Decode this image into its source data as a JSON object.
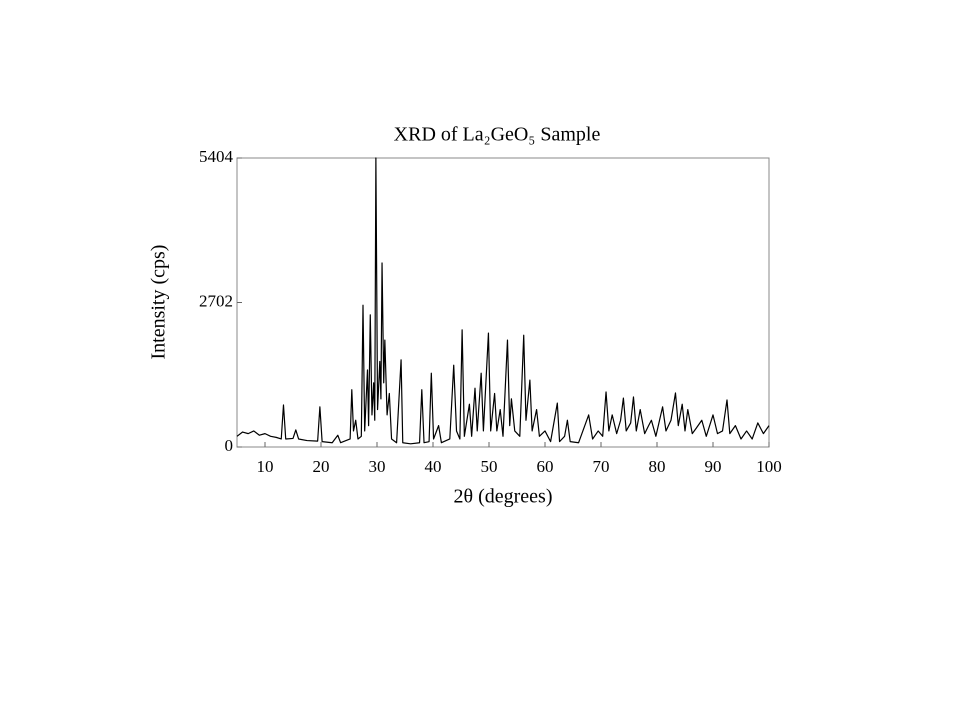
{
  "chart_data": {
    "type": "line",
    "title": "XRD of La₂GeO₅ Sample",
    "x_label": "2θ (degrees)",
    "y_label": "Intensity (cps)",
    "color": "#000000",
    "xlim": [
      5,
      100
    ],
    "ylim": [
      0,
      5404
    ],
    "xticks": [
      10,
      20,
      30,
      40,
      50,
      60,
      70,
      80,
      90,
      100
    ],
    "yticks": [
      0,
      2702,
      5404
    ],
    "x": [
      5,
      6,
      7,
      8,
      9,
      10,
      11,
      12,
      12.9,
      13.3,
      13.7,
      15,
      15.5,
      16,
      17.5,
      19.4,
      19.8,
      20.2,
      22,
      23,
      23.5,
      25.2,
      25.5,
      25.8,
      26.2,
      26.6,
      27.2,
      27.5,
      27.8,
      28.3,
      28.5,
      28.8,
      29.1,
      29.4,
      29.6,
      29.8,
      30.1,
      30.5,
      30.7,
      30.9,
      31.2,
      31.4,
      31.8,
      32.2,
      32.6,
      33.5,
      34.3,
      34.6,
      36,
      37.6,
      38,
      38.4,
      39.3,
      39.7,
      40.1,
      41,
      41.5,
      43,
      43.7,
      44.2,
      44.8,
      45.2,
      45.6,
      46.5,
      46.9,
      47.5,
      47.9,
      48.6,
      49,
      49.9,
      50.3,
      51,
      51.4,
      52,
      52.5,
      53.3,
      53.7,
      54,
      54.6,
      55.5,
      56.2,
      56.6,
      57.3,
      57.7,
      58.5,
      59,
      60,
      61,
      62.2,
      62.6,
      63.5,
      64,
      64.5,
      66,
      67.8,
      68.5,
      69.5,
      70.3,
      70.9,
      71.4,
      72,
      72.8,
      73.5,
      74,
      74.5,
      75.3,
      75.8,
      76.3,
      77,
      77.8,
      78.5,
      79,
      79.8,
      81,
      81.6,
      82.5,
      83.3,
      83.8,
      84.5,
      85,
      85.5,
      86.3,
      87,
      88,
      88.8,
      90,
      90.8,
      91.7,
      92.5,
      93,
      94,
      95,
      96,
      97,
      98,
      99,
      100
    ],
    "values": [
      200,
      280,
      250,
      300,
      220,
      250,
      200,
      180,
      150,
      785,
      150,
      160,
      320,
      150,
      120,
      110,
      750,
      100,
      80,
      220,
      80,
      150,
      1070,
      300,
      500,
      150,
      200,
      2650,
      300,
      1440,
      400,
      2470,
      600,
      1200,
      500,
      5404,
      700,
      1600,
      900,
      3440,
      1200,
      2000,
      600,
      1000,
      150,
      80,
      1630,
      80,
      60,
      80,
      1070,
      80,
      100,
      1380,
      150,
      400,
      80,
      150,
      1530,
      300,
      150,
      2190,
      200,
      800,
      200,
      1100,
      300,
      1380,
      300,
      2130,
      300,
      1000,
      300,
      700,
      200,
      2000,
      400,
      900,
      300,
      200,
      2090,
      500,
      1250,
      300,
      700,
      200,
      300,
      100,
      820,
      100,
      200,
      500,
      100,
      80,
      600,
      150,
      300,
      200,
      1030,
      300,
      600,
      250,
      500,
      915,
      300,
      450,
      935,
      300,
      700,
      250,
      400,
      500,
      200,
      750,
      300,
      500,
      1010,
      400,
      800,
      300,
      700,
      250,
      350,
      500,
      200,
      600,
      250,
      300,
      880,
      250,
      400,
      150,
      300,
      150,
      450,
      250,
      400
    ]
  }
}
